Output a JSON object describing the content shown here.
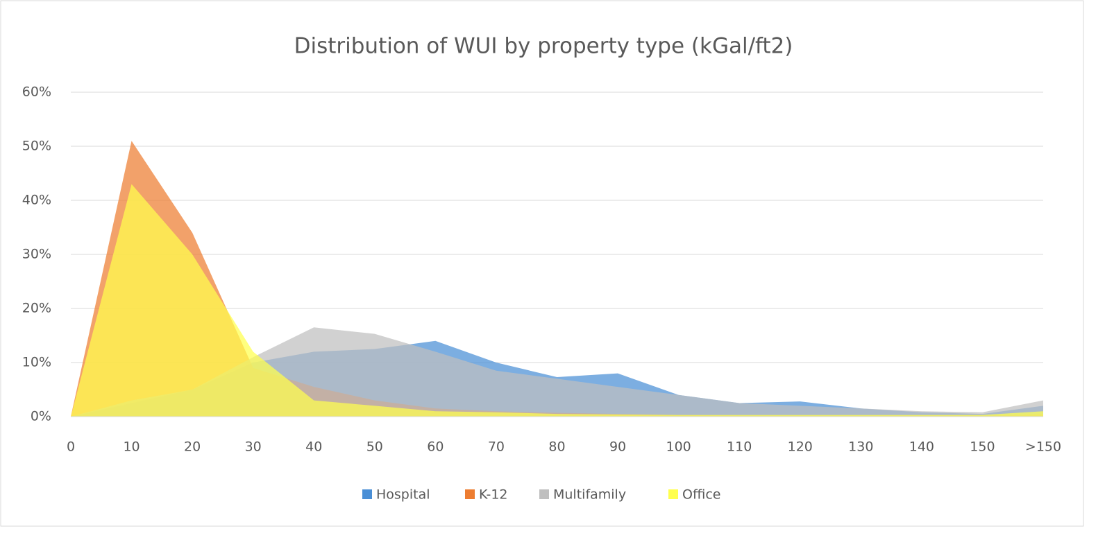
{
  "chart_data": {
    "type": "area",
    "title": "Distribution of WUI by property type (kGal/ft2)",
    "categories": [
      "0",
      "10",
      "20",
      "30",
      "40",
      "50",
      "60",
      "70",
      "80",
      "90",
      "100",
      "110",
      "120",
      "130",
      "140",
      "150",
      ">150"
    ],
    "series": [
      {
        "name": "Hospital",
        "color": "#4a8fd6",
        "values": [
          0,
          2.5,
          5,
          10,
          12,
          12.5,
          14,
          10,
          7.3,
          8,
          4,
          2.5,
          2.8,
          1.5,
          0.8,
          0.5,
          2
        ]
      },
      {
        "name": "K-12",
        "color": "#ed7d31",
        "values": [
          0,
          51,
          34,
          9,
          5.5,
          3,
          1.5,
          1,
          0.7,
          0.5,
          0.3,
          0.2,
          0.2,
          0.2,
          0.2,
          0.2,
          0.5
        ]
      },
      {
        "name": "Multifamily",
        "color": "#bfbfbf",
        "values": [
          0,
          3,
          5,
          11,
          16.5,
          15.3,
          12,
          8.5,
          7,
          5.5,
          4,
          2.5,
          2,
          1.5,
          1,
          0.8,
          3
        ]
      },
      {
        "name": "Office",
        "color": "#ffff4d",
        "values": [
          0,
          43,
          30,
          12,
          3,
          2,
          1,
          0.8,
          0.5,
          0.4,
          0.3,
          0.3,
          0.3,
          0.3,
          0.3,
          0.3,
          1
        ]
      }
    ],
    "ylim": [
      0,
      60
    ],
    "yticks": [
      {
        "value": 0,
        "label": "0%"
      },
      {
        "value": 10,
        "label": "10%"
      },
      {
        "value": 20,
        "label": "20%"
      },
      {
        "value": 30,
        "label": "30%"
      },
      {
        "value": 40,
        "label": "40%"
      },
      {
        "value": 50,
        "label": "50%"
      },
      {
        "value": 60,
        "label": "60%"
      }
    ],
    "grid": true,
    "legend": "bottom"
  }
}
